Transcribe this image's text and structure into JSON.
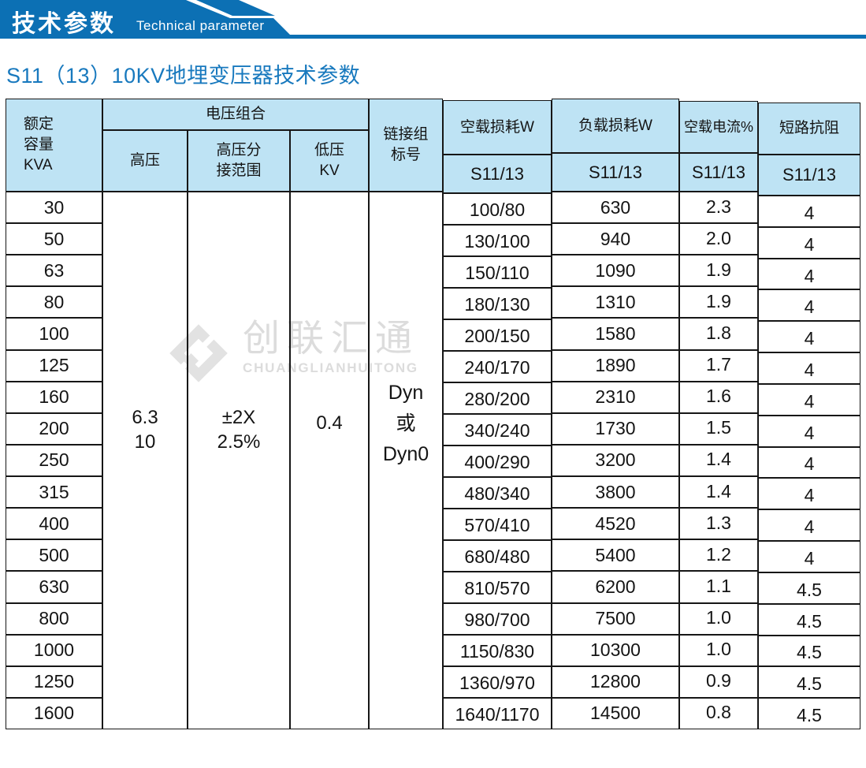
{
  "banner": {
    "title": "技术参数",
    "subtitle": "Technical parameter",
    "ribbon_color": "#0c70b4"
  },
  "page_title": {
    "text": "S11（13）10KV地埋变压器技术参数",
    "color": "#1879be"
  },
  "watermark": {
    "icon": "diamond-logo",
    "name_cn": "创联汇通",
    "name_en": "CHUANGLIANHUITONG",
    "color": "#dcdcdc"
  },
  "table": {
    "header_bg": "#bee3f4",
    "border_color": "#161616",
    "header": {
      "capacity": "额定\n容量\nKVA",
      "voltage_group": "电压组合",
      "hv": "高压",
      "hv_tap": "高压分\n接范围",
      "lv": "低压\nKV",
      "link_group": "链接组\n标号",
      "noload_loss": "空载损耗W",
      "load_loss": "负载损耗W",
      "noload_current": "空载电流%",
      "impedance": "短路抗阻",
      "model_noload": "S11/13",
      "model_load": "S11/13",
      "model_current": "S11/13",
      "model_impedance": "S11/13"
    },
    "merged": {
      "hv": "6.3\n10",
      "hv_tap": "±2X\n2.5%",
      "lv": "0.4",
      "link_group": "Dyn\n或\nDyn0"
    },
    "rows": [
      {
        "capacity": "30",
        "noload_loss": "100/80",
        "load_loss": "630",
        "noload_current": "2.3",
        "impedance": "4"
      },
      {
        "capacity": "50",
        "noload_loss": "130/100",
        "load_loss": "940",
        "noload_current": "2.0",
        "impedance": "4"
      },
      {
        "capacity": "63",
        "noload_loss": "150/110",
        "load_loss": "1090",
        "noload_current": "1.9",
        "impedance": "4"
      },
      {
        "capacity": "80",
        "noload_loss": "180/130",
        "load_loss": "1310",
        "noload_current": "1.9",
        "impedance": "4"
      },
      {
        "capacity": "100",
        "noload_loss": "200/150",
        "load_loss": "1580",
        "noload_current": "1.8",
        "impedance": "4"
      },
      {
        "capacity": "125",
        "noload_loss": "240/170",
        "load_loss": "1890",
        "noload_current": "1.7",
        "impedance": "4"
      },
      {
        "capacity": "160",
        "noload_loss": "280/200",
        "load_loss": "2310",
        "noload_current": "1.6",
        "impedance": "4"
      },
      {
        "capacity": "200",
        "noload_loss": "340/240",
        "load_loss": "1730",
        "noload_current": "1.5",
        "impedance": "4"
      },
      {
        "capacity": "250",
        "noload_loss": "400/290",
        "load_loss": "3200",
        "noload_current": "1.4",
        "impedance": "4"
      },
      {
        "capacity": "315",
        "noload_loss": "480/340",
        "load_loss": "3800",
        "noload_current": "1.4",
        "impedance": "4"
      },
      {
        "capacity": "400",
        "noload_loss": "570/410",
        "load_loss": "4520",
        "noload_current": "1.3",
        "impedance": "4"
      },
      {
        "capacity": "500",
        "noload_loss": "680/480",
        "load_loss": "5400",
        "noload_current": "1.2",
        "impedance": "4"
      },
      {
        "capacity": "630",
        "noload_loss": "810/570",
        "load_loss": "6200",
        "noload_current": "1.1",
        "impedance": "4.5"
      },
      {
        "capacity": "800",
        "noload_loss": "980/700",
        "load_loss": "7500",
        "noload_current": "1.0",
        "impedance": "4.5"
      },
      {
        "capacity": "1000",
        "noload_loss": "1150/830",
        "load_loss": "10300",
        "noload_current": "1.0",
        "impedance": "4.5"
      },
      {
        "capacity": "1250",
        "noload_loss": "1360/970",
        "load_loss": "12800",
        "noload_current": "0.9",
        "impedance": "4.5"
      },
      {
        "capacity": "1600",
        "noload_loss": "1640/1170",
        "load_loss": "14500",
        "noload_current": "0.8",
        "impedance": "4.5"
      }
    ]
  }
}
